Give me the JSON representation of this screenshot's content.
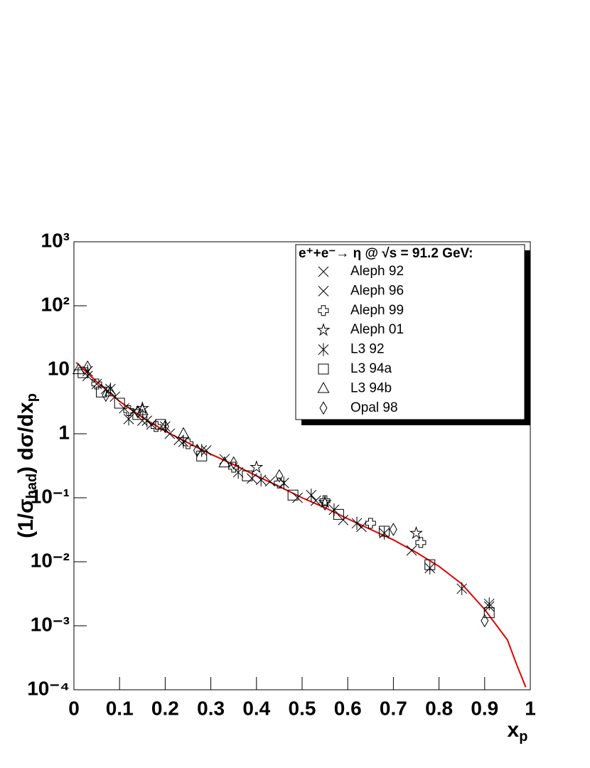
{
  "chart_data": {
    "type": "scatter",
    "y_label": [
      "(1/σ",
      "had",
      ") dσ/dx",
      "p"
    ],
    "x_label": [
      "x",
      "p"
    ],
    "legend_title": "e⁺+e⁻→ η @ √s = 91.2 GeV:",
    "log_y": true,
    "xlim": [
      0,
      1
    ],
    "ylim": [
      0.0001,
      1000
    ],
    "xticks": [
      0,
      0.1,
      0.2,
      0.3,
      0.4,
      0.5,
      0.6,
      0.7,
      0.8,
      0.9,
      1
    ],
    "yticks": [
      {
        "value": 0.0001,
        "label": "10⁻⁴"
      },
      {
        "value": 0.001,
        "label": "10⁻³"
      },
      {
        "value": 0.01,
        "label": "10⁻²"
      },
      {
        "value": 0.1,
        "label": "10⁻¹"
      },
      1,
      10,
      {
        "value": 100,
        "label": "10²"
      },
      {
        "value": 1000,
        "label": "10³"
      }
    ],
    "legend_position": "upper-right",
    "series": [
      {
        "name": "Aleph 92",
        "color": "#000000",
        "marker": "x",
        "x": [
          0.03,
          0.07,
          0.11,
          0.15,
          0.21,
          0.29,
          0.39,
          0.49,
          0.59,
          0.74
        ],
        "values": [
          8,
          5,
          2.5,
          1.6,
          1.0,
          0.55,
          0.2,
          0.1,
          0.045,
          0.015
        ]
      },
      {
        "name": "Aleph 96",
        "color": "#000000",
        "marker": "x",
        "x": [
          0.05,
          0.09,
          0.13,
          0.17,
          0.23,
          0.33,
          0.43,
          0.53,
          0.63,
          0.91
        ],
        "values": [
          6,
          3.8,
          2.2,
          1.4,
          0.8,
          0.4,
          0.18,
          0.09,
          0.035,
          0.002
        ]
      },
      {
        "name": "Aleph 99",
        "color": "#000000",
        "marker": "plus-open",
        "x": [
          0.05,
          0.12,
          0.18,
          0.25,
          0.35,
          0.45,
          0.55,
          0.65,
          0.76
        ],
        "values": [
          6,
          2.3,
          1.3,
          0.7,
          0.3,
          0.17,
          0.09,
          0.04,
          0.02
        ]
      },
      {
        "name": "Aleph 01",
        "color": "#000000",
        "marker": "star-open",
        "x": [
          0.15,
          0.4,
          0.55,
          0.75
        ],
        "values": [
          2.5,
          0.3,
          0.085,
          0.028
        ]
      },
      {
        "name": "L3 92",
        "color": "#000000",
        "marker": "asterisk",
        "x": [
          0.03,
          0.08,
          0.12,
          0.16,
          0.2,
          0.24,
          0.28,
          0.36,
          0.41,
          0.46,
          0.52,
          0.57,
          0.62,
          0.68,
          0.78,
          0.85,
          0.91
        ],
        "values": [
          9.5,
          5,
          1.7,
          1.6,
          1.3,
          0.75,
          0.55,
          0.25,
          0.19,
          0.17,
          0.11,
          0.065,
          0.04,
          0.028,
          0.008,
          0.0038,
          0.0022
        ]
      },
      {
        "name": "L3 94a",
        "color": "#000000",
        "marker": "square-open",
        "x": [
          0.02,
          0.06,
          0.1,
          0.14,
          0.19,
          0.28,
          0.38,
          0.48,
          0.58,
          0.68,
          0.78,
          0.91
        ],
        "values": [
          9,
          4.5,
          3,
          2,
          1.4,
          0.45,
          0.22,
          0.11,
          0.055,
          0.03,
          0.009,
          0.0016
        ]
      },
      {
        "name": "L3 94b",
        "color": "#000000",
        "marker": "triangle-open",
        "x": [
          0.01,
          0.08,
          0.15,
          0.24,
          0.33
        ],
        "values": [
          10,
          4.5,
          2.3,
          1.0,
          0.35
        ]
      },
      {
        "name": "Opal 98",
        "color": "#000000",
        "marker": "diamond-open",
        "x": [
          0.03,
          0.07,
          0.14,
          0.2,
          0.27,
          0.35,
          0.45,
          0.55,
          0.7,
          0.9
        ],
        "values": [
          11,
          4,
          2.2,
          1.3,
          0.55,
          0.35,
          0.22,
          0.08,
          0.032,
          0.0012
        ]
      }
    ],
    "curve": {
      "color": "#e00000",
      "x": [
        0.005,
        0.05,
        0.1,
        0.15,
        0.2,
        0.25,
        0.3,
        0.35,
        0.4,
        0.45,
        0.5,
        0.55,
        0.6,
        0.65,
        0.7,
        0.75,
        0.8,
        0.85,
        0.9,
        0.95,
        0.97,
        0.99
      ],
      "values": [
        13,
        6.5,
        3.2,
        1.8,
        1.1,
        0.72,
        0.48,
        0.33,
        0.22,
        0.15,
        0.1,
        0.07,
        0.047,
        0.032,
        0.022,
        0.014,
        0.0085,
        0.0045,
        0.0018,
        0.0006,
        0.00025,
        0.00011
      ]
    }
  }
}
